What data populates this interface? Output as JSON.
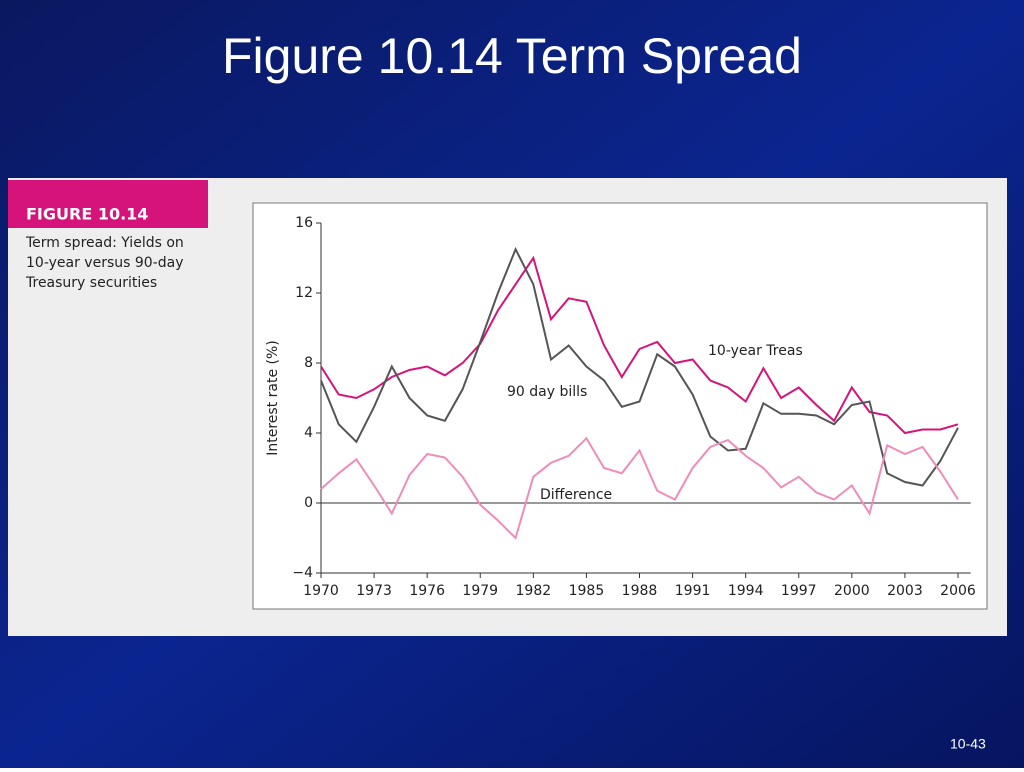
{
  "slide": {
    "title": "Figure 10.14 Term Spread",
    "number": "10-43"
  },
  "chart_data": {
    "type": "line",
    "figure_label": "FIGURE 10.14",
    "caption": [
      "Term spread: Yields on",
      "10-year versus 90-day",
      "Treasury securities"
    ],
    "ylabel": "Interest rate (%)",
    "x": [
      1970,
      1971,
      1972,
      1973,
      1974,
      1975,
      1976,
      1977,
      1978,
      1979,
      1980,
      1981,
      1982,
      1983,
      1984,
      1985,
      1986,
      1987,
      1988,
      1989,
      1990,
      1991,
      1992,
      1993,
      1994,
      1995,
      1996,
      1997,
      1998,
      1999,
      2000,
      2001,
      2002,
      2003,
      2004,
      2005,
      2006
    ],
    "series": [
      {
        "name": "10-year Treas",
        "color": "#d4147a",
        "values": [
          7.8,
          6.2,
          6.0,
          6.5,
          7.2,
          7.6,
          7.8,
          7.3,
          8.0,
          9.1,
          11.0,
          12.5,
          14.0,
          10.5,
          11.7,
          11.5,
          9.0,
          7.2,
          8.8,
          9.2,
          8.0,
          8.2,
          7.0,
          6.6,
          5.8,
          7.7,
          6.0,
          6.6,
          5.6,
          4.7,
          6.6,
          5.2,
          5.0,
          4.0,
          4.2,
          4.2,
          4.5
        ]
      },
      {
        "name": "90 day bills",
        "color": "#555555",
        "values": [
          7.0,
          4.5,
          3.5,
          5.5,
          7.8,
          6.0,
          5.0,
          4.7,
          6.5,
          9.2,
          12.0,
          14.5,
          12.5,
          8.2,
          9.0,
          7.8,
          7.0,
          5.5,
          5.8,
          8.5,
          7.8,
          6.2,
          3.8,
          3.0,
          3.1,
          5.7,
          5.1,
          5.1,
          5.0,
          4.5,
          5.6,
          5.8,
          1.7,
          1.2,
          1.0,
          2.4,
          4.3
        ]
      },
      {
        "name": "Difference",
        "color": "#f08cb8",
        "values": [
          0.8,
          1.7,
          2.5,
          1.0,
          -0.6,
          1.6,
          2.8,
          2.6,
          1.5,
          -0.1,
          -1.0,
          -2.0,
          1.5,
          2.3,
          2.7,
          3.7,
          2.0,
          1.7,
          3.0,
          0.7,
          0.2,
          2.0,
          3.2,
          3.6,
          2.7,
          2.0,
          0.9,
          1.5,
          0.6,
          0.2,
          1.0,
          -0.6,
          3.3,
          2.8,
          3.2,
          1.8,
          0.2
        ]
      }
    ],
    "xlim": [
      1970,
      2007
    ],
    "xticks": [
      1970,
      1973,
      1976,
      1979,
      1982,
      1985,
      1988,
      1991,
      1994,
      1997,
      2000,
      2003,
      2006
    ],
    "ylim": [
      -4,
      16
    ],
    "yticks": [
      {
        "value": -4,
        "label": "−4"
      },
      0,
      4,
      8,
      12,
      16
    ]
  }
}
